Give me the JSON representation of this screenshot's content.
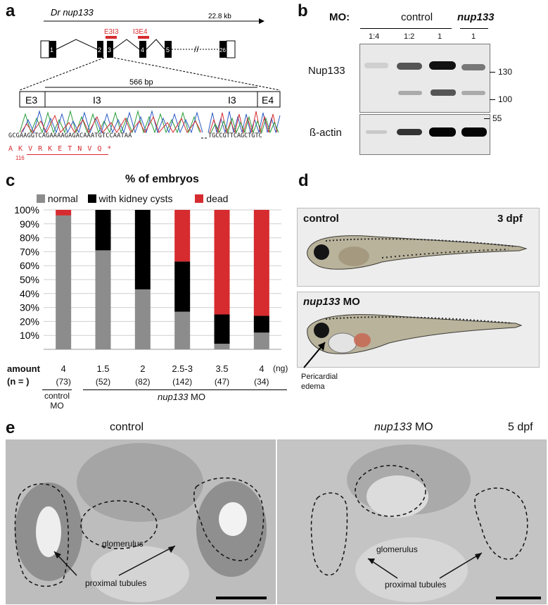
{
  "panels": {
    "a": {
      "letter": "a",
      "gene": "Dr nup133",
      "size": "22.8 kb",
      "exons": [
        "1",
        "2",
        "3",
        "4",
        "5",
        "26"
      ],
      "mo_sites": [
        "E3I3",
        "I3E4"
      ],
      "zoom_size": "566 bp",
      "zoom_regions": [
        "E3",
        "I3",
        "I3",
        "E4"
      ],
      "seq_left": "GCGAAGGTCAGAAAAGAGACAAATGTCCAATAA",
      "seq_right": "TGCCGTTCAGCTGTC",
      "aa_seq": "A K V R K E T N V Q *",
      "aa_pos": "116"
    },
    "b": {
      "letter": "b",
      "mo_label": "MO:",
      "control_label": "control",
      "nup_label": "nup133",
      "lanes": [
        "1:4",
        "1:2",
        "1",
        "1"
      ],
      "row1": "Nup133",
      "row2": "ß-actin",
      "markers": [
        "130",
        "100",
        "55"
      ]
    },
    "c": {
      "letter": "c",
      "title": "% of embryos",
      "legend": [
        "normal",
        "with kidney cysts",
        "dead"
      ],
      "amount_label": "amount",
      "n_label": "(n = )",
      "unit": "(ng)",
      "control_group": "control MO",
      "nup_group_italic": "nup133",
      "nup_group_rest": " MO"
    },
    "d": {
      "letter": "d",
      "control": "control",
      "stage": "3 dpf",
      "mo_italic": "nup133",
      "mo_rest": " MO",
      "arrow_label": "Pericardial edema"
    },
    "e": {
      "letter": "e",
      "control": "control",
      "mo_italic": "nup133",
      "mo_rest": " MO",
      "stage": "5 dpf",
      "glom": "glomerulus",
      "tubules": "proximal tubules"
    }
  },
  "chart_data": {
    "type": "bar",
    "stacked": true,
    "title": "% of embryos",
    "categories": [
      "4",
      "1.5",
      "2",
      "2.5-3",
      "3.5",
      "4"
    ],
    "n": [
      "(73)",
      "(52)",
      "(82)",
      "(142)",
      "(47)",
      "(34)"
    ],
    "series": [
      {
        "name": "normal",
        "color": "#8c8c8c",
        "values": [
          96,
          71,
          43,
          27,
          4,
          12
        ]
      },
      {
        "name": "with kidney cysts",
        "color": "#000000",
        "values": [
          0,
          29,
          57,
          36,
          21,
          12
        ]
      },
      {
        "name": "dead",
        "color": "#d62b2f",
        "values": [
          4,
          0,
          0,
          37,
          75,
          76
        ]
      }
    ],
    "yticks": [
      "10%",
      "20%",
      "30%",
      "40%",
      "50%",
      "60%",
      "70%",
      "80%",
      "90%",
      "100%"
    ],
    "ylim": [
      0,
      100
    ],
    "grid": true
  }
}
